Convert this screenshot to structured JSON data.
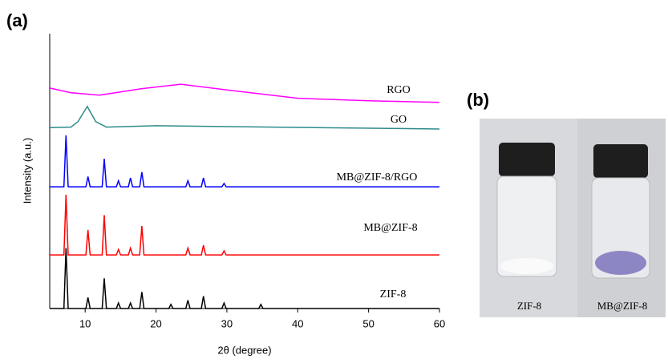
{
  "chart_data": {
    "type": "line",
    "panel_label": "(a)",
    "xlabel": "2θ (degree)",
    "ylabel": "Intensity (a.u.)",
    "xlim": [
      5,
      60
    ],
    "xticks": [
      10,
      20,
      30,
      40,
      50,
      60
    ],
    "ylim": [
      0,
      100
    ],
    "series": [
      {
        "name": "RGO",
        "color": "#ff00ff",
        "x": [
          5,
          8,
          12,
          18,
          23.5,
          30,
          40,
          50,
          60
        ],
        "values": [
          80.2,
          78.5,
          77.6,
          80,
          81.6,
          79.5,
          76.5,
          75.6,
          75
        ]
      },
      {
        "name": "GO",
        "color": "#2e8b8b",
        "x": [
          5,
          8,
          9,
          10.3,
          11.5,
          13,
          20,
          60
        ],
        "values": [
          65.8,
          66,
          68,
          73.5,
          68,
          66,
          66.5,
          65.3
        ]
      },
      {
        "name": "MB@ZIF-8/RGO",
        "color": "#0000ff",
        "x": [
          5,
          7.0,
          7.3,
          7.6,
          10.1,
          10.4,
          10.7,
          12.4,
          12.7,
          13.0,
          14.4,
          14.7,
          15.0,
          16.1,
          16.4,
          16.7,
          17.7,
          18.0,
          18.3,
          24.2,
          24.5,
          24.8,
          26.4,
          26.7,
          27.0,
          29.3,
          29.6,
          29.9,
          60
        ],
        "values": [
          44.3,
          44.3,
          63,
          44.3,
          44.3,
          48,
          44.3,
          44.3,
          54.5,
          44.3,
          44.3,
          46.5,
          44.3,
          44.3,
          47.5,
          44.3,
          44.3,
          49.6,
          44.3,
          44.3,
          46.5,
          44.3,
          44.3,
          47.5,
          44.3,
          44.3,
          45.5,
          44.3,
          44.3
        ]
      },
      {
        "name": "MB@ZIF-8",
        "color": "#ff0000",
        "x": [
          5,
          7.0,
          7.3,
          7.6,
          10.1,
          10.4,
          10.7,
          12.4,
          12.7,
          13.0,
          14.4,
          14.7,
          15.0,
          16.1,
          16.4,
          16.7,
          17.7,
          18.0,
          18.3,
          24.2,
          24.5,
          24.8,
          26.4,
          26.7,
          27.0,
          29.3,
          29.6,
          29.9,
          60
        ],
        "values": [
          19.5,
          19.5,
          41.4,
          19.5,
          19.5,
          28.6,
          19.5,
          19.5,
          34,
          19.5,
          19.5,
          21.5,
          19.5,
          19.5,
          22,
          19.5,
          19.5,
          30,
          19.5,
          19.5,
          22,
          19.5,
          19.5,
          23,
          19.5,
          19.5,
          21,
          19.5,
          19.5
        ]
      },
      {
        "name": "ZIF-8",
        "color": "#000000",
        "x": [
          5,
          7.0,
          7.3,
          7.6,
          10.1,
          10.4,
          10.7,
          12.4,
          12.7,
          13.0,
          14.4,
          14.7,
          15.0,
          16.1,
          16.4,
          16.7,
          17.7,
          18.0,
          18.3,
          21.8,
          22.1,
          22.4,
          24.2,
          24.5,
          24.8,
          26.4,
          26.7,
          27.0,
          29.3,
          29.6,
          29.9,
          34.5,
          34.8,
          35.1,
          60
        ],
        "values": [
          0,
          0,
          22,
          0,
          0,
          4,
          0,
          0,
          11,
          0,
          0,
          2,
          0,
          0,
          2,
          0,
          0,
          6,
          0,
          0,
          1.5,
          0,
          0,
          3,
          0,
          0,
          4.5,
          0,
          0,
          2,
          0,
          0,
          1.5,
          0,
          0
        ]
      }
    ]
  },
  "panel_b": {
    "label": "(b)",
    "captions": [
      "ZIF-8",
      "MB@ZIF-8"
    ]
  }
}
